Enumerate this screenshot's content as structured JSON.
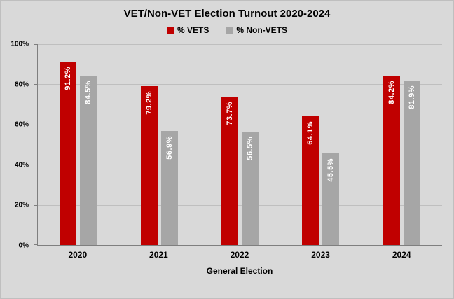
{
  "chart_data": {
    "type": "bar",
    "title": "VET/Non-VET Election Turnout 2020-2024",
    "categories": [
      "2020",
      "2021",
      "2022",
      "2023",
      "2024"
    ],
    "series": [
      {
        "name": "% VETS",
        "color": "#c00000",
        "values": [
          91.2,
          79.2,
          73.7,
          64.1,
          84.2
        ],
        "labels": [
          "91.2%",
          "79.2%",
          "73.7%",
          "64.1%",
          "84.2%"
        ]
      },
      {
        "name": "% Non-VETS",
        "color": "#a6a6a6",
        "values": [
          84.5,
          56.9,
          56.5,
          45.5,
          81.9
        ],
        "labels": [
          "84.5%",
          "56.9%",
          "56.5%",
          "45.5%",
          "81.9%"
        ]
      }
    ],
    "xlabel": "General Election",
    "ylabel": "",
    "ylim": [
      0,
      100
    ],
    "yticks": [
      "0%",
      "20%",
      "40%",
      "60%",
      "80%",
      "100%"
    ],
    "grid": true,
    "legend_position": "top",
    "data_labels": "inside-end-vertical"
  },
  "colors": {
    "background": "#d9d9d9",
    "gridline": "#bfbfbf",
    "axis": "#7f7f7f",
    "bar_label_text": "#ffffff"
  }
}
